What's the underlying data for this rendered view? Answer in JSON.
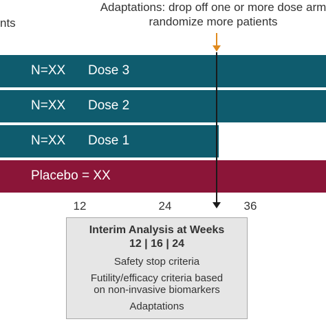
{
  "header": {
    "left_text": "nts",
    "adaptation_line1": "Adaptations: drop off one or more dose arm",
    "adaptation_line2": "randomize more patients"
  },
  "arms": [
    {
      "n_label": "N=XX",
      "dose_label": "Dose 3",
      "color": "#0f5c6e"
    },
    {
      "n_label": "N=XX",
      "dose_label": "Dose 2",
      "color": "#0f5c6e"
    },
    {
      "n_label": "N=XX",
      "dose_label": "Dose 1",
      "color": "#0f5c6e"
    },
    {
      "label": "Placebo = XX",
      "color": "#8b1538"
    }
  ],
  "axis": {
    "ticks": [
      "12",
      "24",
      "36"
    ]
  },
  "interim_box": {
    "title_line1": "Interim Analysis at Weeks",
    "title_line2": "12 | 16 | 24",
    "item1": "Safety stop criteria",
    "item2_line1": "Futility/efficacy criteria based",
    "item2_line2": "on non-invasive biomarkers",
    "item3": "Adaptations"
  },
  "colors": {
    "arrow_orange": "#e08a1e",
    "box_bg": "#e6e6e6"
  }
}
